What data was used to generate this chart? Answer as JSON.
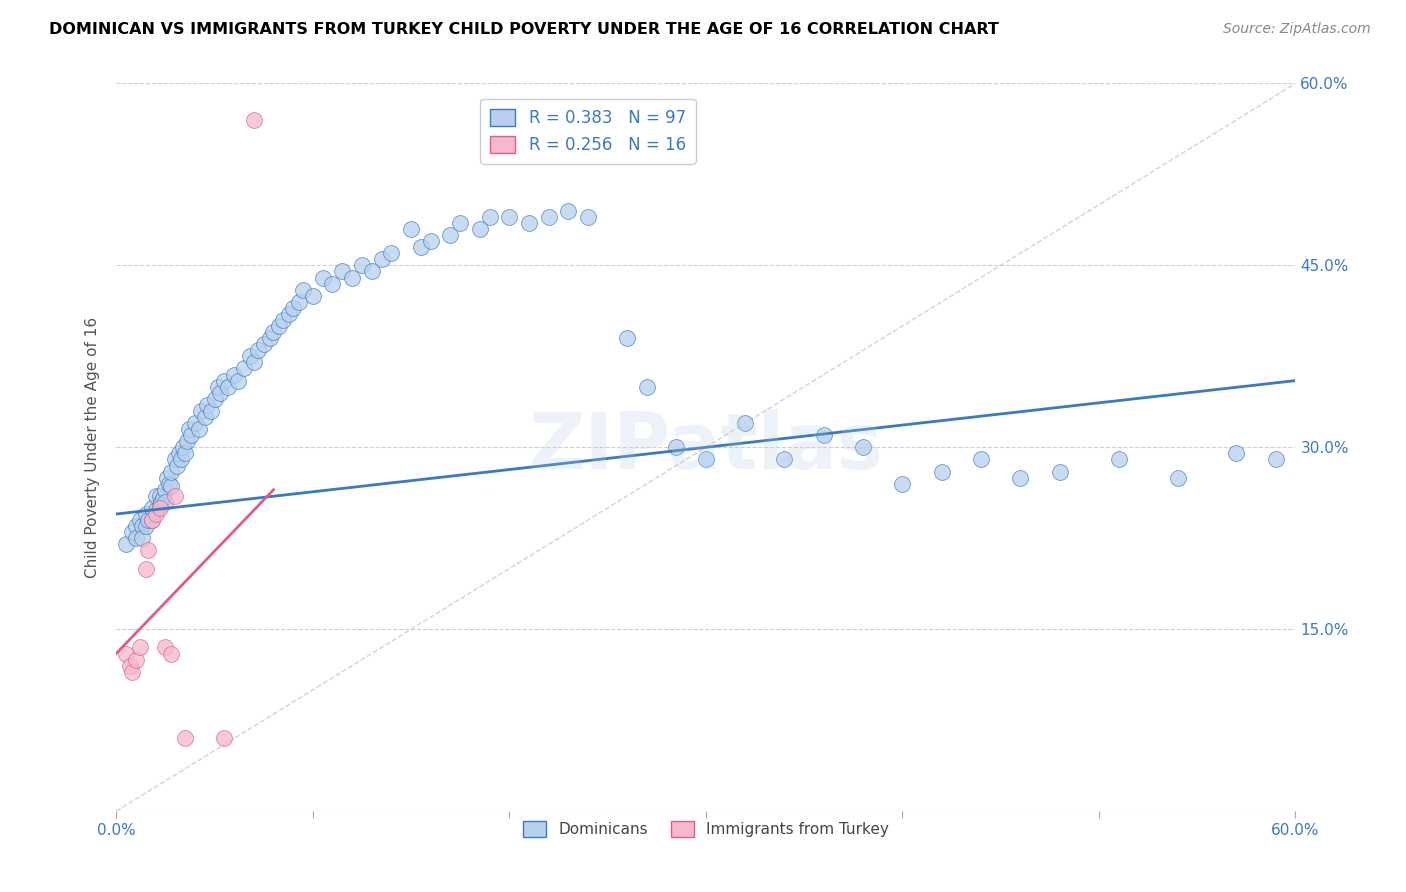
{
  "title": "DOMINICAN VS IMMIGRANTS FROM TURKEY CHILD POVERTY UNDER THE AGE OF 16 CORRELATION CHART",
  "source": "Source: ZipAtlas.com",
  "ylabel": "Child Poverty Under the Age of 16",
  "xlim": [
    0.0,
    0.6
  ],
  "ylim": [
    0.0,
    0.6
  ],
  "dominicans_R": 0.383,
  "dominicans_N": 97,
  "turkey_R": 0.256,
  "turkey_N": 16,
  "dominican_color": "#b8d0ed",
  "turkey_color": "#f5b8cc",
  "dominican_line_color": "#3a7abf",
  "turkey_line_color": "#e05a8a",
  "grid_color": "#d0d0d0",
  "watermark": "ZIPatlas",
  "dominican_x": [
    0.005,
    0.008,
    0.01,
    0.01,
    0.012,
    0.013,
    0.013,
    0.015,
    0.015,
    0.016,
    0.018,
    0.018,
    0.02,
    0.02,
    0.022,
    0.022,
    0.023,
    0.024,
    0.025,
    0.025,
    0.026,
    0.027,
    0.028,
    0.028,
    0.03,
    0.031,
    0.032,
    0.033,
    0.034,
    0.035,
    0.036,
    0.037,
    0.038,
    0.04,
    0.042,
    0.043,
    0.045,
    0.046,
    0.048,
    0.05,
    0.052,
    0.053,
    0.055,
    0.057,
    0.06,
    0.062,
    0.065,
    0.068,
    0.07,
    0.072,
    0.075,
    0.078,
    0.08,
    0.083,
    0.085,
    0.088,
    0.09,
    0.093,
    0.095,
    0.1,
    0.105,
    0.11,
    0.115,
    0.12,
    0.125,
    0.13,
    0.135,
    0.14,
    0.15,
    0.155,
    0.16,
    0.17,
    0.175,
    0.185,
    0.19,
    0.2,
    0.21,
    0.22,
    0.23,
    0.24,
    0.26,
    0.27,
    0.285,
    0.3,
    0.32,
    0.34,
    0.36,
    0.38,
    0.4,
    0.42,
    0.44,
    0.46,
    0.48,
    0.51,
    0.54,
    0.57,
    0.59
  ],
  "dominican_y": [
    0.22,
    0.23,
    0.235,
    0.225,
    0.24,
    0.235,
    0.225,
    0.245,
    0.235,
    0.24,
    0.25,
    0.24,
    0.26,
    0.248,
    0.26,
    0.252,
    0.255,
    0.258,
    0.265,
    0.255,
    0.275,
    0.27,
    0.268,
    0.28,
    0.29,
    0.285,
    0.295,
    0.29,
    0.3,
    0.295,
    0.305,
    0.315,
    0.31,
    0.32,
    0.315,
    0.33,
    0.325,
    0.335,
    0.33,
    0.34,
    0.35,
    0.345,
    0.355,
    0.35,
    0.36,
    0.355,
    0.365,
    0.375,
    0.37,
    0.38,
    0.385,
    0.39,
    0.395,
    0.4,
    0.405,
    0.41,
    0.415,
    0.42,
    0.43,
    0.425,
    0.44,
    0.435,
    0.445,
    0.44,
    0.45,
    0.445,
    0.455,
    0.46,
    0.48,
    0.465,
    0.47,
    0.475,
    0.485,
    0.48,
    0.49,
    0.49,
    0.485,
    0.49,
    0.495,
    0.49,
    0.39,
    0.35,
    0.3,
    0.29,
    0.32,
    0.29,
    0.31,
    0.3,
    0.27,
    0.28,
    0.29,
    0.275,
    0.28,
    0.29,
    0.275,
    0.295,
    0.29
  ],
  "turkey_x": [
    0.005,
    0.007,
    0.008,
    0.01,
    0.012,
    0.015,
    0.016,
    0.018,
    0.02,
    0.022,
    0.025,
    0.028,
    0.03,
    0.035,
    0.055,
    0.07
  ],
  "turkey_y": [
    0.13,
    0.12,
    0.115,
    0.125,
    0.135,
    0.2,
    0.215,
    0.24,
    0.245,
    0.25,
    0.135,
    0.13,
    0.26,
    0.06,
    0.06,
    0.57
  ],
  "dom_line_x0": 0.0,
  "dom_line_y0": 0.245,
  "dom_line_x1": 0.6,
  "dom_line_y1": 0.355,
  "tur_line_x0": 0.0,
  "tur_line_y0": 0.13,
  "tur_line_x1": 0.08,
  "tur_line_y1": 0.265
}
